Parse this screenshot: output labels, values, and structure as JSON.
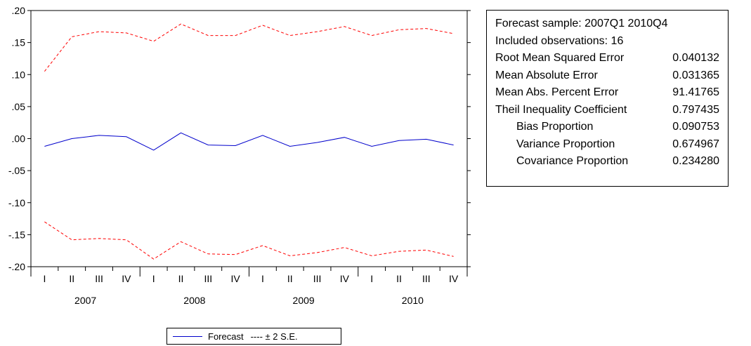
{
  "chart_data": {
    "type": "line",
    "x": [
      "I",
      "II",
      "III",
      "IV",
      "I",
      "II",
      "III",
      "IV",
      "I",
      "II",
      "III",
      "IV",
      "I",
      "II",
      "III",
      "IV"
    ],
    "year_labels": [
      "2007",
      "2008",
      "2009",
      "2010"
    ],
    "yticks": [
      ".20",
      ".15",
      ".10",
      ".05",
      ".00",
      "-.05",
      "-.10",
      "-.15",
      "-.20"
    ],
    "ylim": [
      -0.2,
      0.2
    ],
    "grid": false,
    "series": [
      {
        "name": "Forecast",
        "color": "#0000cc",
        "style": "solid",
        "values": [
          -0.012,
          0.0,
          0.005,
          0.003,
          -0.018,
          0.009,
          -0.01,
          -0.011,
          0.005,
          -0.012,
          -0.006,
          0.002,
          -0.012,
          -0.003,
          -0.001,
          -0.01
        ]
      },
      {
        "name": "± 2 S.E.",
        "color": "#ff0000",
        "style": "dashed",
        "values": [
          0.105,
          0.159,
          0.167,
          0.165,
          0.152,
          0.179,
          0.161,
          0.161,
          0.177,
          0.161,
          0.167,
          0.175,
          0.161,
          0.17,
          0.172,
          0.164
        ]
      },
      {
        "name": "",
        "color": "#ff0000",
        "style": "dashed",
        "values": [
          -0.13,
          -0.158,
          -0.156,
          -0.158,
          -0.188,
          -0.161,
          -0.18,
          -0.181,
          -0.167,
          -0.183,
          -0.178,
          -0.17,
          -0.183,
          -0.176,
          -0.174,
          -0.184
        ]
      }
    ],
    "legend_placement": "bottom"
  },
  "stats": {
    "rows": [
      {
        "label": "Forecast sample: 2007Q1 2010Q4",
        "value": "",
        "indent": false
      },
      {
        "label": "Included observations: 16",
        "value": "",
        "indent": false
      },
      {
        "label": "Root Mean Squared Error",
        "value": "0.040132",
        "indent": false
      },
      {
        "label": "Mean Absolute Error",
        "value": "0.031365",
        "indent": false
      },
      {
        "label": "Mean Abs. Percent Error",
        "value": "91.41765",
        "indent": false
      },
      {
        "label": "Theil Inequality Coefficient",
        "value": "0.797435",
        "indent": false
      },
      {
        "label": "Bias Proportion",
        "value": "0.090753",
        "indent": true
      },
      {
        "label": "Variance Proportion",
        "value": "0.674967",
        "indent": true
      },
      {
        "label": "Covariance Proportion",
        "value": "0.234280",
        "indent": true
      }
    ]
  },
  "legend": {
    "items": [
      {
        "label": "Forecast",
        "style": "solid"
      },
      {
        "label": "---- ± 2 S.E.",
        "style": "dashed"
      }
    ]
  }
}
